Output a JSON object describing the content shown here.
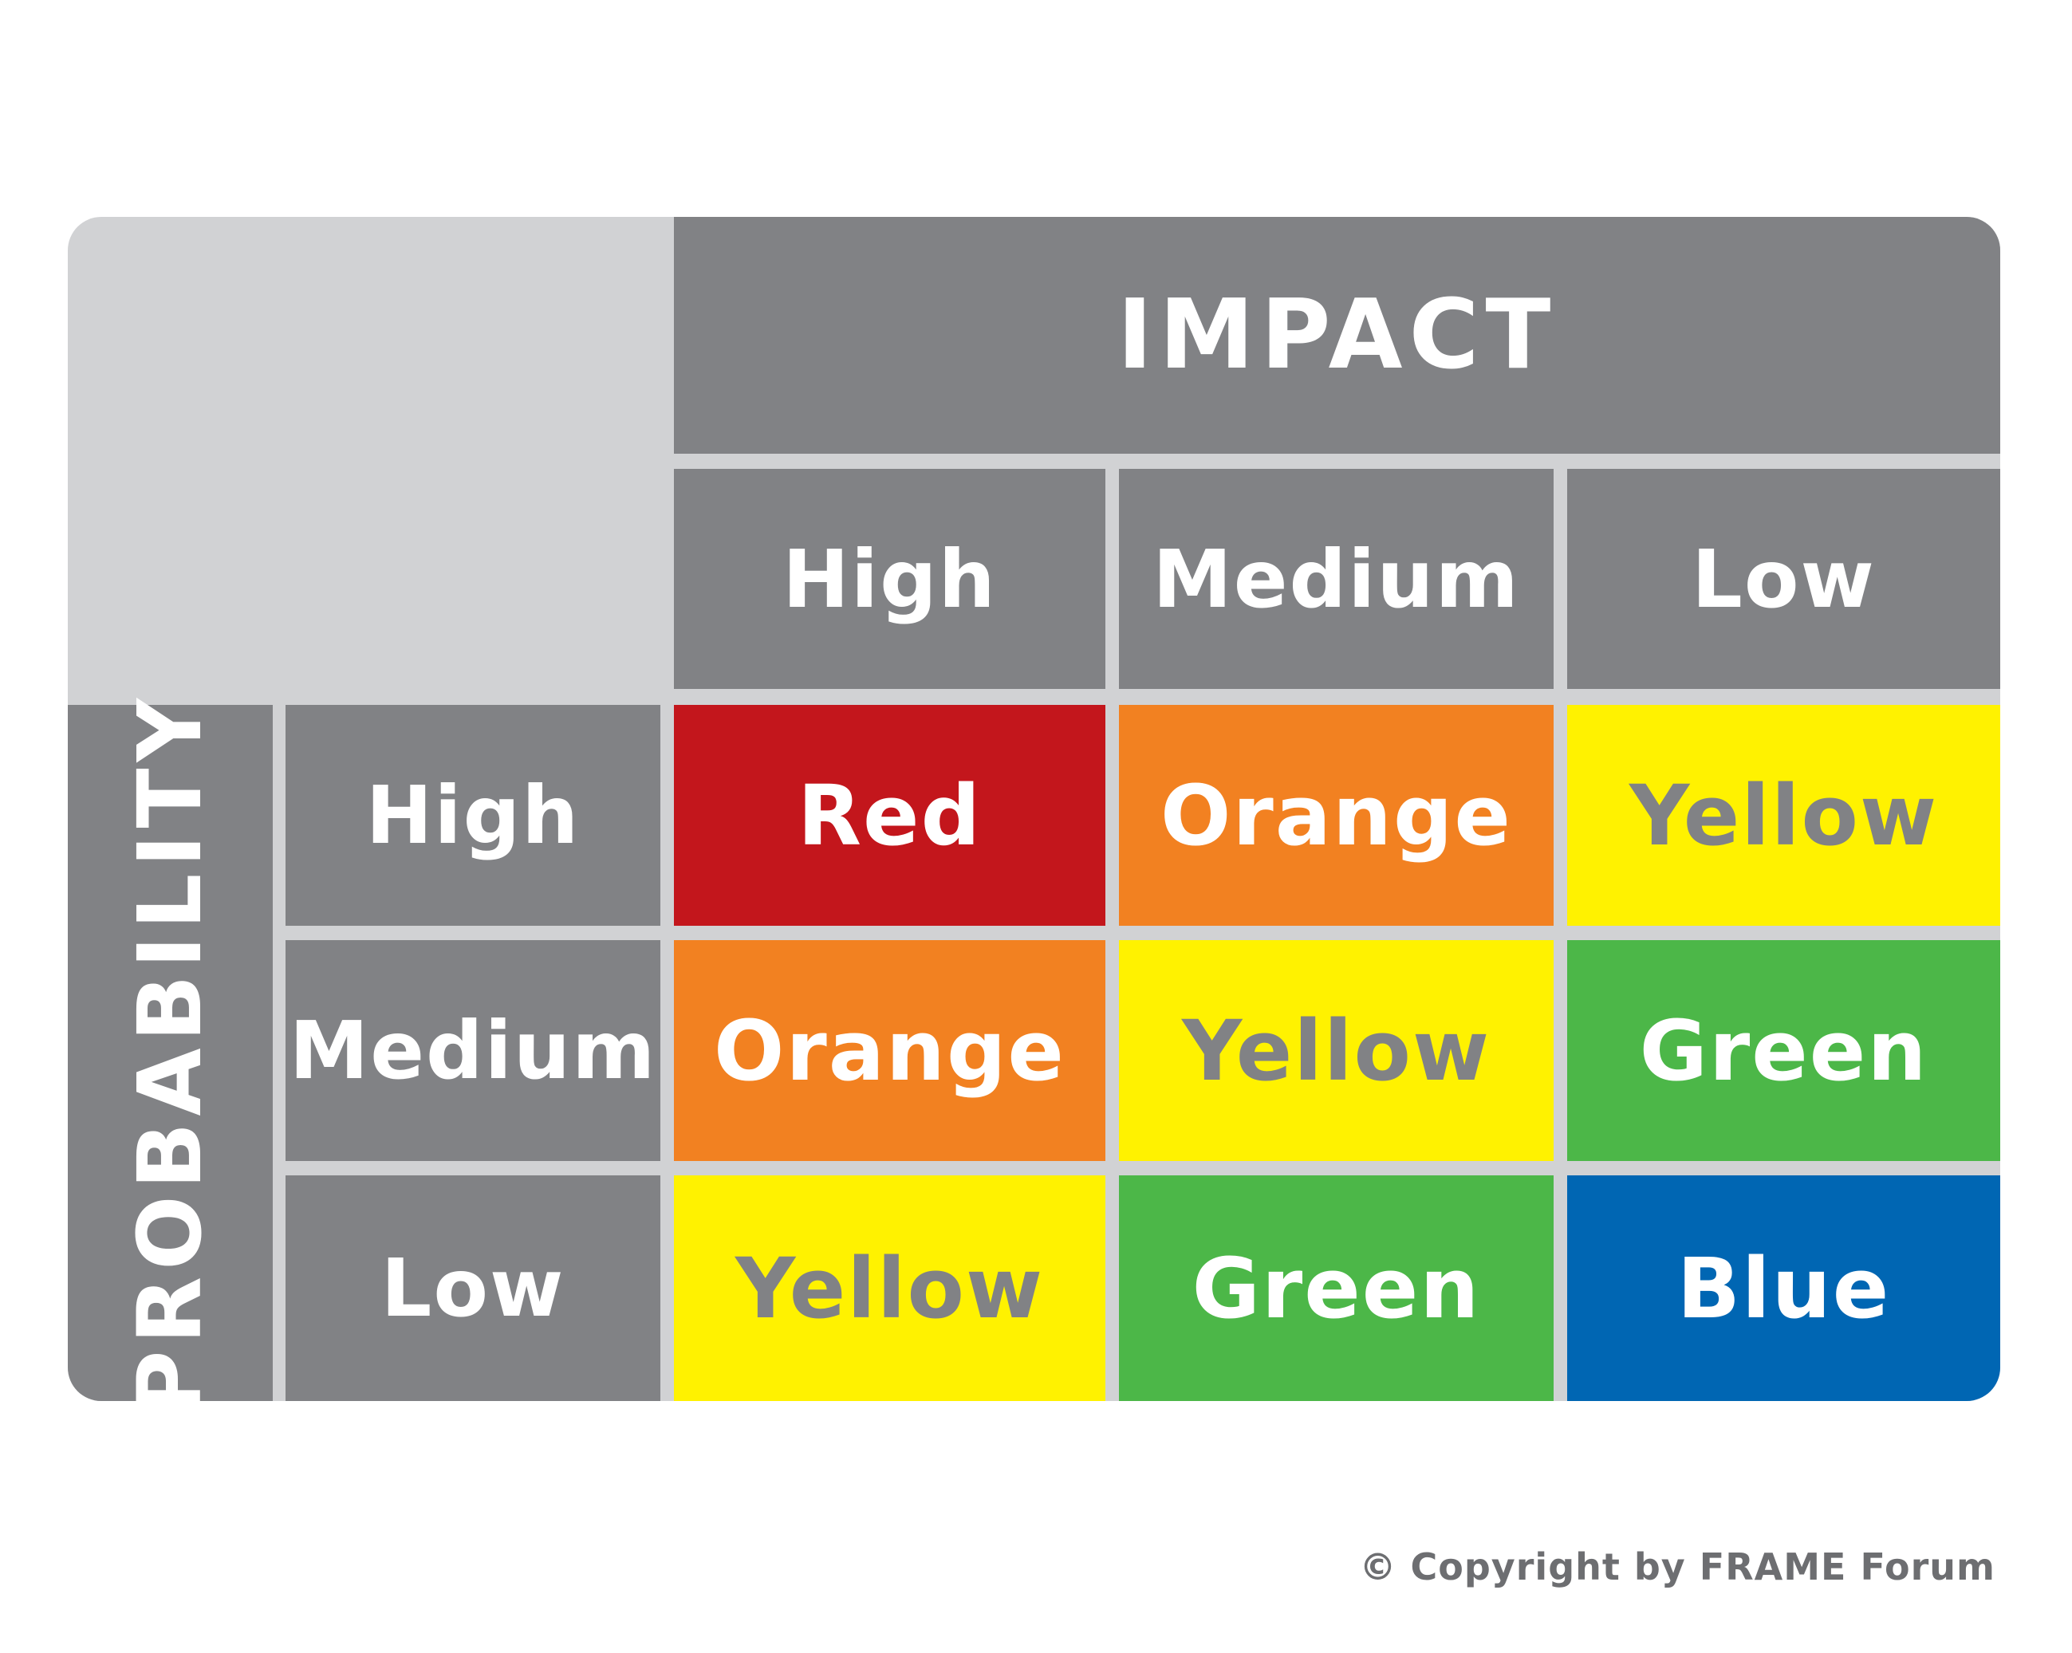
{
  "impact_title": "IMPACT",
  "probability_title": "PROBABILITY",
  "impact_levels": [
    "High",
    "Medium",
    "Low"
  ],
  "probability_levels": [
    "High",
    "Medium",
    "Low"
  ],
  "matrix": [
    [
      {
        "label": "Red",
        "bg": "#c3161c",
        "fg": "#ffffff"
      },
      {
        "label": "Orange",
        "bg": "#f28121",
        "fg": "#ffffff"
      },
      {
        "label": "Yellow",
        "bg": "#fff200",
        "fg": "#818285"
      }
    ],
    [
      {
        "label": "Orange",
        "bg": "#f28121",
        "fg": "#ffffff"
      },
      {
        "label": "Yellow",
        "bg": "#fff200",
        "fg": "#818285"
      },
      {
        "label": "Green",
        "bg": "#4cb748",
        "fg": "#ffffff"
      }
    ],
    [
      {
        "label": "Yellow",
        "bg": "#fff200",
        "fg": "#818285"
      },
      {
        "label": "Green",
        "bg": "#4cb748",
        "fg": "#ffffff"
      },
      {
        "label": "Blue",
        "bg": "#0066b3",
        "fg": "#ffffff"
      }
    ]
  ],
  "colors": {
    "header_grey": "#818285",
    "background_grey": "#d1d2d4"
  },
  "copyright": "© Copyright by FRAME Forum"
}
